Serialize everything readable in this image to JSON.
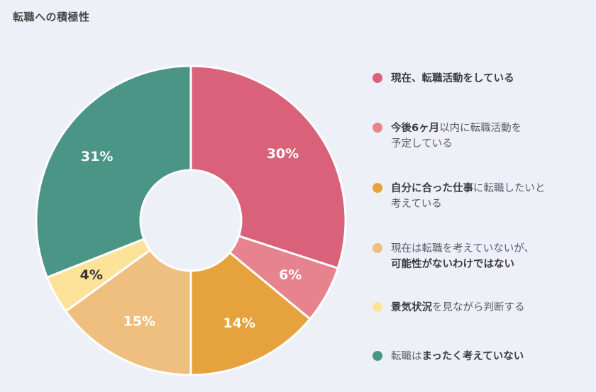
{
  "title": "転職への積極性",
  "chart_data": {
    "type": "pie",
    "donut": true,
    "categories": [
      "現在、転職活動をしている",
      "今後6ヶ月以内に転職活動を予定している",
      "自分に合った仕事に転職したいと考えている",
      "現在は転職を考えていないが、可能性がないわけではない",
      "景気状況を見ながら判断する",
      "転職はまったく考えていない"
    ],
    "values": [
      30,
      6,
      14,
      15,
      4,
      31
    ],
    "labels": [
      "30%",
      "6%",
      "14%",
      "15%",
      "4%",
      "31%"
    ],
    "colors": [
      "#d9627a",
      "#e6838f",
      "#e6a23c",
      "#efbf80",
      "#fde39a",
      "#4b9586"
    ],
    "label_colors": [
      "#ffffff",
      "#ffffff",
      "#ffffff",
      "#ffffff",
      "#333333",
      "#ffffff"
    ],
    "legend_position": "right"
  },
  "legend": [
    {
      "segments": [
        {
          "text": "現在、転職活動をしている",
          "bold": true
        }
      ]
    },
    {
      "segments": [
        {
          "text": "今後6ヶ月",
          "bold": true
        },
        {
          "text": "以内に転職活動を\n予定している",
          "bold": false
        }
      ]
    },
    {
      "segments": [
        {
          "text": "自分に合った仕事",
          "bold": true
        },
        {
          "text": "に転職したいと\n考えている",
          "bold": false
        }
      ]
    },
    {
      "segments": [
        {
          "text": "現在は転職を考えていないが、\n",
          "bold": false
        },
        {
          "text": "可能性がないわけではない",
          "bold": true
        }
      ]
    },
    {
      "segments": [
        {
          "text": "景気状況",
          "bold": true
        },
        {
          "text": "を見ながら判断する",
          "bold": false
        }
      ]
    },
    {
      "segments": [
        {
          "text": "転職は",
          "bold": false
        },
        {
          "text": "まったく考えていない",
          "bold": true
        }
      ]
    }
  ]
}
